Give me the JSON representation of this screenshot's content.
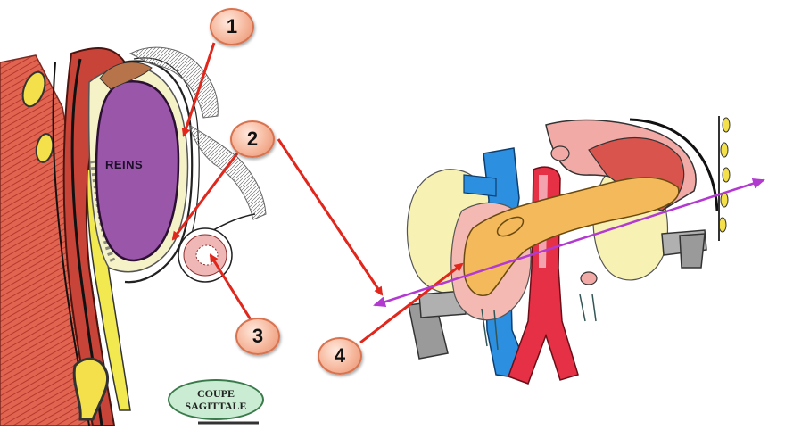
{
  "diagram": {
    "organ_label": "REINS",
    "view_label_line1": "COUPE",
    "view_label_line2": "SAGITTALE",
    "markers": [
      "1",
      "2",
      "3",
      "4"
    ],
    "colors": {
      "kidney": "#9a56a8",
      "muscle": "#c8463c",
      "fat": "#f2ee9c",
      "arrow": "#e1261c",
      "section_line": "#b23ad0",
      "aorta": "#e53045",
      "vena_cava": "#2d8fe0",
      "pancreas": "#f3b95a"
    }
  }
}
